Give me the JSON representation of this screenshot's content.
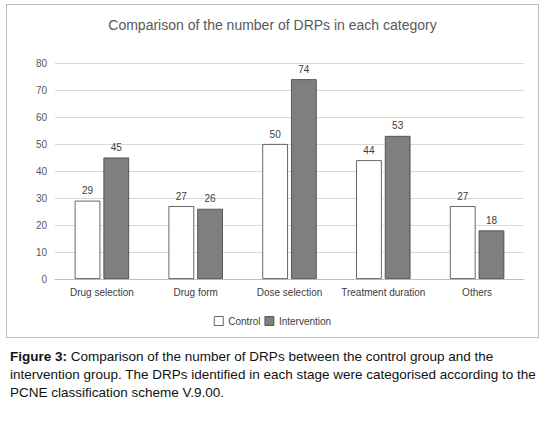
{
  "chart_data": {
    "type": "bar",
    "title": "Comparison of the number of DRPs in each category",
    "categories": [
      "Drug selection",
      "Drug form",
      "Dose selection",
      "Treatment duration",
      "Others"
    ],
    "series": [
      {
        "name": "Control",
        "color": "#ffffff",
        "values": [
          29,
          27,
          50,
          44,
          27
        ]
      },
      {
        "name": "Intervention",
        "color": "#7f7f7f",
        "values": [
          45,
          26,
          74,
          53,
          18
        ]
      }
    ],
    "ylim": [
      0,
      80
    ],
    "yticks": [
      0,
      10,
      20,
      30,
      40,
      50,
      60,
      70,
      80
    ],
    "grid": true,
    "legend": "bottom",
    "data_labels": true
  },
  "caption": {
    "label": "Figure 3:",
    "text": "Comparison of the number of DRPs between the control group and the intervention group. The DRPs identified in each stage were categorised according to the PCNE classification scheme V.9.00."
  }
}
